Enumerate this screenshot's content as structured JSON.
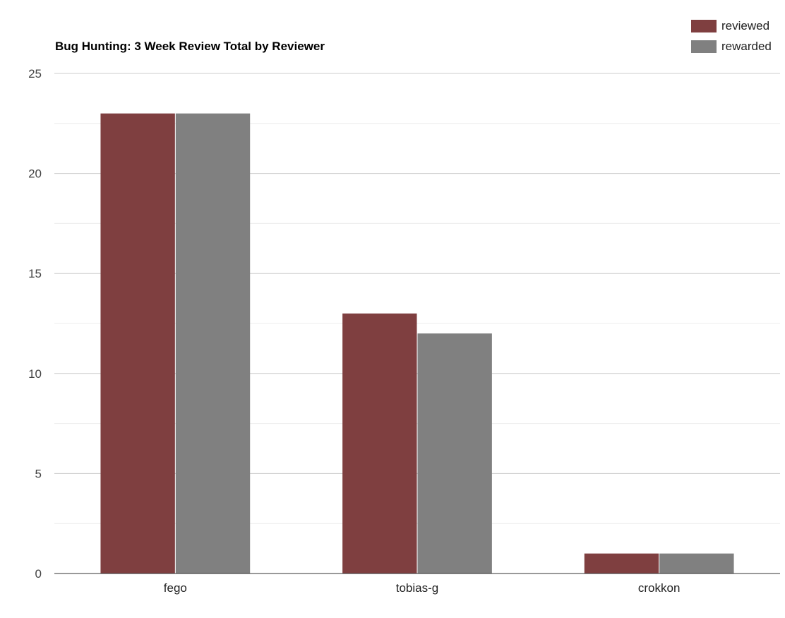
{
  "chart_data": {
    "type": "bar",
    "title": "Bug Hunting: 3 Week Review Total by Reviewer",
    "categories": [
      "fego",
      "tobias-g",
      "crokkon"
    ],
    "series": [
      {
        "name": "reviewed",
        "values": [
          23,
          13,
          1
        ],
        "color": "#7f3f40"
      },
      {
        "name": "rewarded",
        "values": [
          23,
          12,
          1
        ],
        "color": "#808080"
      }
    ],
    "ylim": [
      0,
      25
    ],
    "yticks": [
      "0",
      "5",
      "10",
      "15",
      "20",
      "25"
    ],
    "grid": true,
    "legend_position": "top-right"
  }
}
